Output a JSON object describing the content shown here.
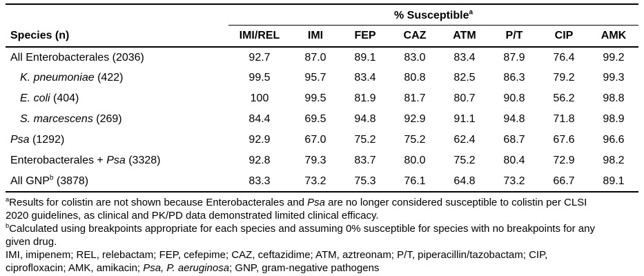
{
  "colors": {
    "text": "#000000",
    "background": "#ffffff",
    "rule": "#000000"
  },
  "table": {
    "span_header": "% Susceptible",
    "span_header_sup": "a",
    "species_header": "Species (n)",
    "columns": [
      "IMI/REL",
      "IMI",
      "FEP",
      "CAZ",
      "ATM",
      "P/T",
      "CIP",
      "AMK"
    ],
    "rows": [
      {
        "indent": false,
        "label_parts": [
          {
            "t": "All Enterobacterales (2036)"
          }
        ],
        "values": [
          "92.7",
          "87.0",
          "89.1",
          "83.0",
          "83.4",
          "87.9",
          "76.4",
          "99.2"
        ]
      },
      {
        "indent": true,
        "label_parts": [
          {
            "t": "K. pneumoniae",
            "i": true
          },
          {
            "t": " (422)"
          }
        ],
        "values": [
          "99.5",
          "95.7",
          "83.4",
          "80.8",
          "82.5",
          "86.3",
          "79.2",
          "99.3"
        ]
      },
      {
        "indent": true,
        "label_parts": [
          {
            "t": "E. coli",
            "i": true
          },
          {
            "t": " (404)"
          }
        ],
        "values": [
          "100",
          "99.5",
          "81.9",
          "81.7",
          "80.7",
          "90.8",
          "56.2",
          "98.8"
        ]
      },
      {
        "indent": true,
        "label_parts": [
          {
            "t": "S. marcescens",
            "i": true
          },
          {
            "t": " (269)"
          }
        ],
        "values": [
          "84.4",
          "69.5",
          "94.8",
          "92.9",
          "91.1",
          "94.8",
          "71.8",
          "98.9"
        ]
      },
      {
        "indent": false,
        "label_parts": [
          {
            "t": "Psa",
            "i": true
          },
          {
            "t": " (1292)"
          }
        ],
        "values": [
          "92.9",
          "67.0",
          "75.2",
          "75.2",
          "62.4",
          "68.7",
          "67.6",
          "96.6"
        ]
      },
      {
        "indent": false,
        "label_parts": [
          {
            "t": "Enterobacterales + "
          },
          {
            "t": "Psa",
            "i": true
          },
          {
            "t": " (3328)"
          }
        ],
        "values": [
          "92.8",
          "79.3",
          "83.7",
          "80.0",
          "75.2",
          "80.4",
          "72.9",
          "98.2"
        ]
      },
      {
        "indent": false,
        "label_parts": [
          {
            "t": "All GNP"
          },
          {
            "t": "b",
            "sup": true
          },
          {
            "t": " (3878)"
          }
        ],
        "values": [
          "83.3",
          "73.2",
          "75.3",
          "76.1",
          "64.8",
          "73.2",
          "66.7",
          "89.1"
        ]
      }
    ]
  },
  "footnotes": {
    "lines": [
      {
        "parts": [
          {
            "t": "a",
            "sup": true
          },
          {
            "t": "Results for colistin are not shown because Enterobacterales and "
          },
          {
            "t": "Psa",
            "i": true
          },
          {
            "t": " are no longer considered susceptible to colistin per CLSI"
          }
        ]
      },
      {
        "parts": [
          {
            "t": "2020 guidelines, as clinical and PK/PD data demonstrated limited clinical efficacy."
          }
        ]
      },
      {
        "parts": [
          {
            "t": "b",
            "sup": true
          },
          {
            "t": "Calculated using breakpoints appropriate for each species and assuming 0% susceptible for species with no breakpoints for any"
          }
        ]
      },
      {
        "parts": [
          {
            "t": "given drug."
          }
        ]
      },
      {
        "parts": [
          {
            "t": "IMI, imipenem; REL, relebactam; FEP, cefepime; CAZ, ceftazidime; ATM, aztreonam; P/T, piperacillin/tazobactam; CIP,"
          }
        ]
      },
      {
        "parts": [
          {
            "t": "ciprofloxacin; AMK, amikacin; "
          },
          {
            "t": "Psa, P. aeruginosa",
            "i": true
          },
          {
            "t": "; GNP, gram-negative pathogens"
          }
        ]
      }
    ]
  }
}
